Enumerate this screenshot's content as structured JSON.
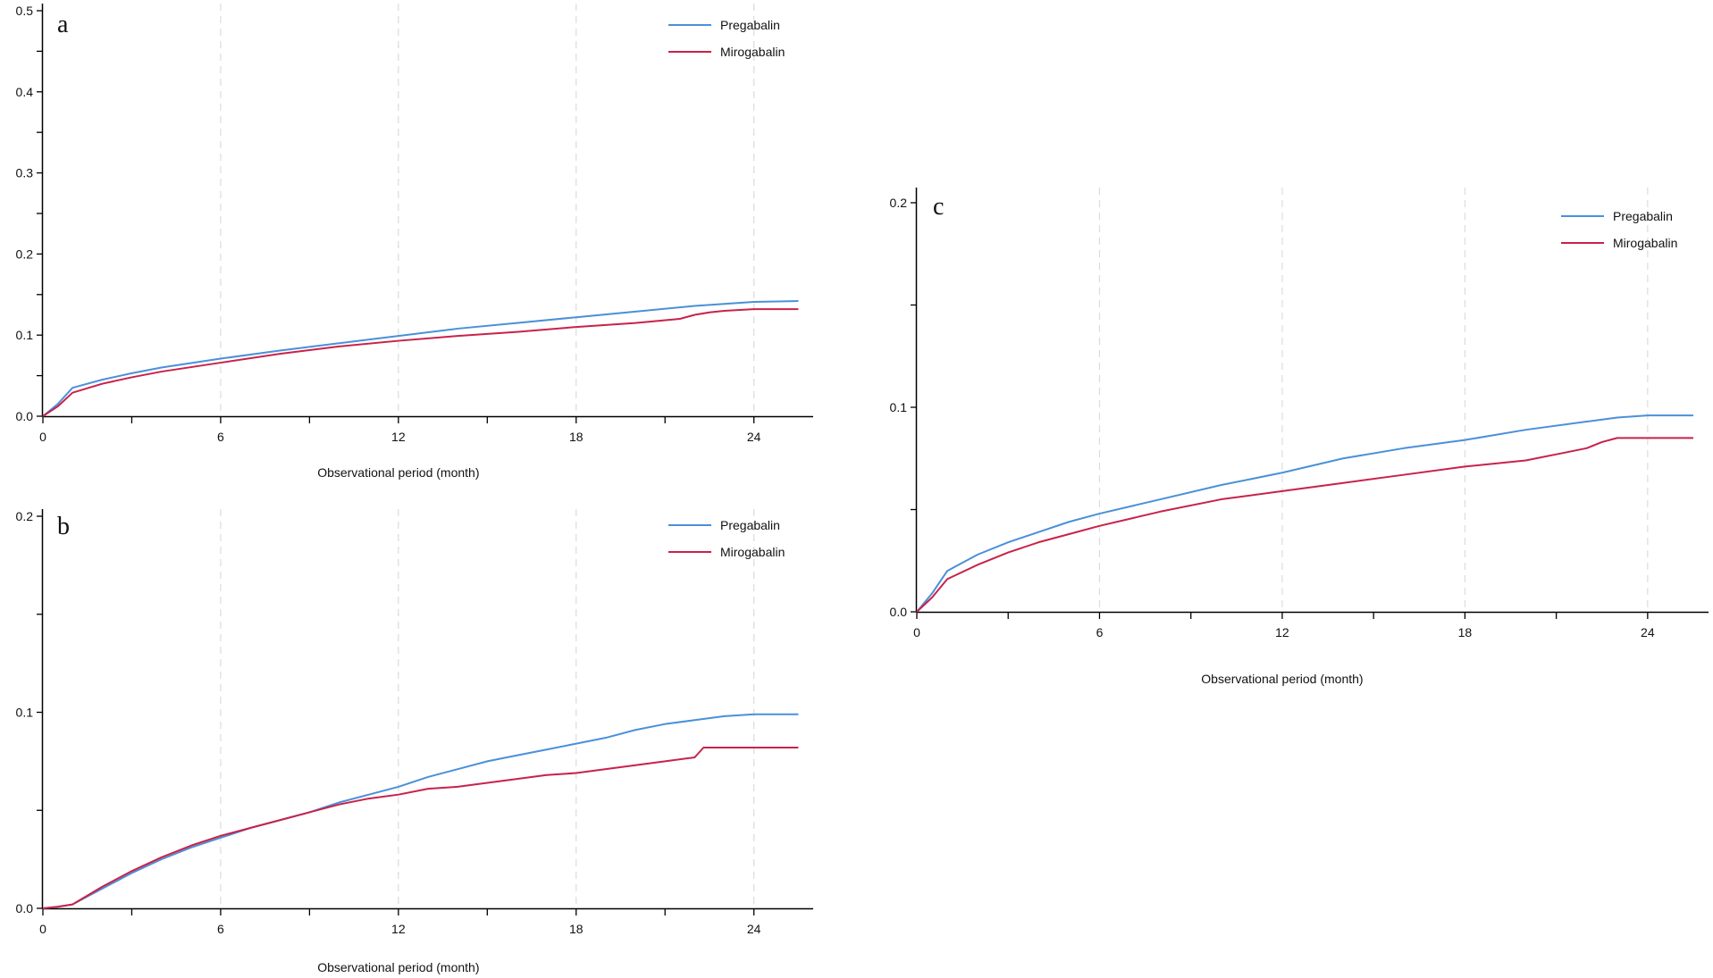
{
  "chart_data": [
    {
      "type": "line",
      "panel_label": "a",
      "xlabel": "Observational period (month)",
      "ylabel": "",
      "xlim": [
        0,
        26
      ],
      "ylim": [
        0,
        0.5
      ],
      "xticks": [
        "0",
        "6",
        "12",
        "18",
        "24"
      ],
      "yticks": [
        "0.0",
        "0.1",
        "0.2",
        "0.3",
        "0.4",
        "0.5"
      ],
      "grid": "vertical dashed at x ticks",
      "legend_position": "top-right",
      "series": [
        {
          "name": "Pregabalin",
          "color": "#4a90d9",
          "x": [
            0,
            0.5,
            1,
            2,
            3,
            4,
            6,
            8,
            10,
            12,
            14,
            16,
            18,
            20,
            22,
            24,
            25.5
          ],
          "y": [
            0,
            0.015,
            0.035,
            0.045,
            0.053,
            0.06,
            0.071,
            0.081,
            0.09,
            0.099,
            0.108,
            0.115,
            0.122,
            0.129,
            0.136,
            0.141,
            0.142
          ]
        },
        {
          "name": "Mirogabalin",
          "color": "#c8224a",
          "x": [
            0,
            0.5,
            1,
            2,
            3,
            4,
            6,
            8,
            10,
            12,
            14,
            16,
            18,
            20,
            21.5,
            22,
            22.5,
            23,
            24,
            25.5
          ],
          "y": [
            0,
            0.012,
            0.029,
            0.04,
            0.048,
            0.055,
            0.066,
            0.077,
            0.086,
            0.093,
            0.099,
            0.104,
            0.11,
            0.115,
            0.12,
            0.125,
            0.128,
            0.13,
            0.132,
            0.132
          ]
        }
      ]
    },
    {
      "type": "line",
      "panel_label": "b",
      "xlabel": "Observational period (month)",
      "ylabel": "",
      "xlim": [
        0,
        26
      ],
      "ylim": [
        0,
        0.2
      ],
      "xticks": [
        "0",
        "6",
        "12",
        "18",
        "24"
      ],
      "yticks": [
        "0.0",
        "0.1",
        "0.2"
      ],
      "grid": "vertical dashed at x ticks",
      "legend_position": "top-right",
      "series": [
        {
          "name": "Pregabalin",
          "color": "#4a90d9",
          "x": [
            0,
            0.5,
            1,
            2,
            3,
            4,
            5,
            6,
            7,
            8,
            9,
            10,
            11,
            12,
            13,
            14,
            15,
            16,
            17,
            18,
            19,
            20,
            21,
            22,
            23,
            24,
            25.5
          ],
          "y": [
            0,
            0.0008,
            0.002,
            0.01,
            0.018,
            0.025,
            0.031,
            0.036,
            0.041,
            0.045,
            0.049,
            0.054,
            0.058,
            0.062,
            0.067,
            0.071,
            0.075,
            0.078,
            0.081,
            0.084,
            0.087,
            0.091,
            0.094,
            0.096,
            0.098,
            0.099,
            0.099
          ]
        },
        {
          "name": "Mirogabalin",
          "color": "#c8224a",
          "x": [
            0,
            0.5,
            1,
            2,
            3,
            4,
            5,
            6,
            7,
            8,
            9,
            10,
            11,
            12,
            13,
            14,
            15,
            16,
            17,
            18,
            19,
            20,
            21,
            22,
            22.3,
            23,
            24,
            25.5
          ],
          "y": [
            0,
            0.0008,
            0.002,
            0.011,
            0.019,
            0.026,
            0.032,
            0.037,
            0.041,
            0.045,
            0.049,
            0.053,
            0.056,
            0.058,
            0.061,
            0.062,
            0.064,
            0.066,
            0.068,
            0.069,
            0.071,
            0.073,
            0.075,
            0.077,
            0.082,
            0.082,
            0.082,
            0.082
          ]
        }
      ]
    },
    {
      "type": "line",
      "panel_label": "c",
      "xlabel": "Observational period (month)",
      "ylabel": "",
      "xlim": [
        0,
        26
      ],
      "ylim": [
        0,
        0.2
      ],
      "xticks": [
        "0",
        "6",
        "12",
        "18",
        "24"
      ],
      "yticks": [
        "0.0",
        "0.1",
        "0.2"
      ],
      "grid": "vertical dashed at x ticks",
      "legend_position": "top-right",
      "series": [
        {
          "name": "Pregabalin",
          "color": "#4a90d9",
          "x": [
            0,
            0.5,
            1,
            2,
            3,
            4,
            5,
            6,
            8,
            10,
            12,
            14,
            16,
            18,
            20,
            22,
            23,
            24,
            25.5
          ],
          "y": [
            0,
            0.009,
            0.02,
            0.028,
            0.034,
            0.039,
            0.044,
            0.048,
            0.055,
            0.062,
            0.068,
            0.075,
            0.08,
            0.084,
            0.089,
            0.093,
            0.095,
            0.096,
            0.096
          ]
        },
        {
          "name": "Mirogabalin",
          "color": "#c8224a",
          "x": [
            0,
            0.5,
            1,
            2,
            3,
            4,
            5,
            6,
            8,
            10,
            12,
            14,
            16,
            18,
            20,
            21,
            22,
            22.5,
            23,
            24,
            25.5
          ],
          "y": [
            0,
            0.007,
            0.016,
            0.023,
            0.029,
            0.034,
            0.038,
            0.042,
            0.049,
            0.055,
            0.059,
            0.063,
            0.067,
            0.071,
            0.074,
            0.077,
            0.08,
            0.083,
            0.085,
            0.085,
            0.085
          ]
        }
      ]
    }
  ]
}
